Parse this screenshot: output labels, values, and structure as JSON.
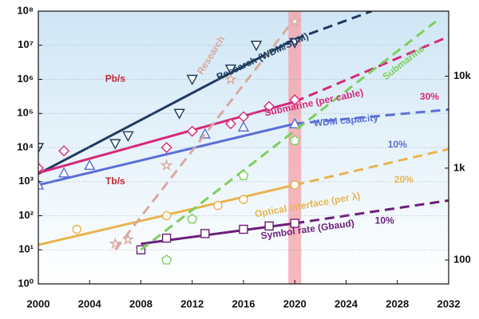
{
  "chart_data": {
    "type": "line",
    "log_y": true,
    "xlim": [
      2000,
      2032
    ],
    "xticks": [
      2000,
      2004,
      2008,
      2012,
      2016,
      2020,
      2024,
      2028,
      2032
    ],
    "ylim": [
      1,
      100000000
    ],
    "yticks": [
      {
        "value": 1,
        "label": "10⁰"
      },
      {
        "value": 10,
        "label": "10¹"
      },
      {
        "value": 100,
        "label": "10²"
      },
      {
        "value": 1000,
        "label": "10³"
      },
      {
        "value": 10000,
        "label": "10⁴"
      },
      {
        "value": 100000,
        "label": "10⁵"
      },
      {
        "value": 1000000,
        "label": "10⁶"
      },
      {
        "value": 10000000,
        "label": "10⁷"
      },
      {
        "value": 100000000,
        "label": "10⁸"
      }
    ],
    "y2lim": [
      55,
      51000
    ],
    "y2ticks": [
      100,
      {
        "value": 1000,
        "label": "1k"
      },
      {
        "value": 10000,
        "label": "10k"
      }
    ],
    "grid": true,
    "highlight": {
      "xlim": [
        2019.5,
        2020.5
      ],
      "color": "#f4a0a8"
    },
    "annotations": [
      {
        "text": "Pb/s",
        "x": 2006,
        "y": 1000000,
        "color": "#c0282e"
      },
      {
        "text": "Tb/s",
        "x": 2006,
        "y": 1000,
        "color": "#c0282e"
      }
    ],
    "series": [
      {
        "name": "Research (WDM/SDM)",
        "color": "#1f3a5f",
        "marker": "triangle-down",
        "line_style": "solid",
        "x": [
          2000,
          2006,
          2007,
          2011,
          2012,
          2015,
          2017,
          2020
        ],
        "values": [
          10000,
          13000,
          22000,
          100000,
          1000000,
          2000000,
          10000000,
          12000000
        ],
        "trend_x": [
          2000,
          2020,
          2026
        ],
        "trend_values": [
          1700,
          15000000,
          100000000
        ]
      },
      {
        "name": "Submarine (per cable)",
        "growth": "30%",
        "color": "#d6287a",
        "marker": "diamond",
        "line_style": "solid",
        "x": [
          2000,
          2002,
          2010,
          2012,
          2015,
          2016,
          2018,
          2020
        ],
        "values": [
          2500,
          8000,
          10000,
          30000,
          50000,
          80000,
          160000,
          250000
        ],
        "trend_x": [
          2000,
          2020,
          2032
        ],
        "trend_values": [
          1800,
          220000,
          18000000
        ]
      },
      {
        "name": "WDM capacity",
        "growth": "10%",
        "color": "#5b6fd6",
        "marker": "triangle",
        "line_style": "solid",
        "x": [
          2000,
          2002,
          2004,
          2013,
          2016,
          2020
        ],
        "values": [
          800,
          1800,
          3000,
          25000,
          40000,
          50000
        ],
        "trend_x": [
          2000,
          2020,
          2032
        ],
        "trend_values": [
          800,
          50000,
          130000
        ]
      },
      {
        "name": "Optical interface (per λ)",
        "growth": "20%",
        "color": "#e8b450",
        "marker": "circle",
        "line_style": "solid",
        "x": [
          2003,
          2010,
          2014,
          2016,
          2020
        ],
        "values": [
          40,
          100,
          200,
          300,
          800
        ],
        "trend_x": [
          2000,
          2020,
          2032
        ],
        "trend_values": [
          14,
          800,
          9000
        ]
      },
      {
        "name": "Symbol rate (Gbaud)",
        "growth": "10%",
        "color": "#6b1f7a",
        "marker": "square",
        "line_style": "solid",
        "x": [
          2008,
          2010,
          2013,
          2016,
          2018,
          2020
        ],
        "values": [
          10,
          22,
          30,
          40,
          50,
          60
        ],
        "trend_x": [
          2008,
          2020,
          2032
        ],
        "trend_values": [
          15,
          60,
          280
        ]
      },
      {
        "name": "Submarine",
        "color": "#7ccf5a",
        "marker": "pentagon",
        "line_style": "dashed",
        "x": [
          2010,
          2012,
          2016,
          2020
        ],
        "values": [
          5,
          80,
          1500,
          16000
        ],
        "trend_x": [
          2008,
          2031
        ],
        "trend_values": [
          10,
          50000000
        ]
      },
      {
        "name": "Research",
        "color": "#d9a9a0",
        "marker": "star",
        "line_style": "dashed",
        "x": [
          2006,
          2007,
          2010,
          2015,
          2020
        ],
        "values": [
          15,
          20,
          3000,
          1000000,
          50000000
        ],
        "trend_x": [
          2006,
          2020
        ],
        "trend_values": [
          10,
          60000000
        ]
      }
    ]
  }
}
